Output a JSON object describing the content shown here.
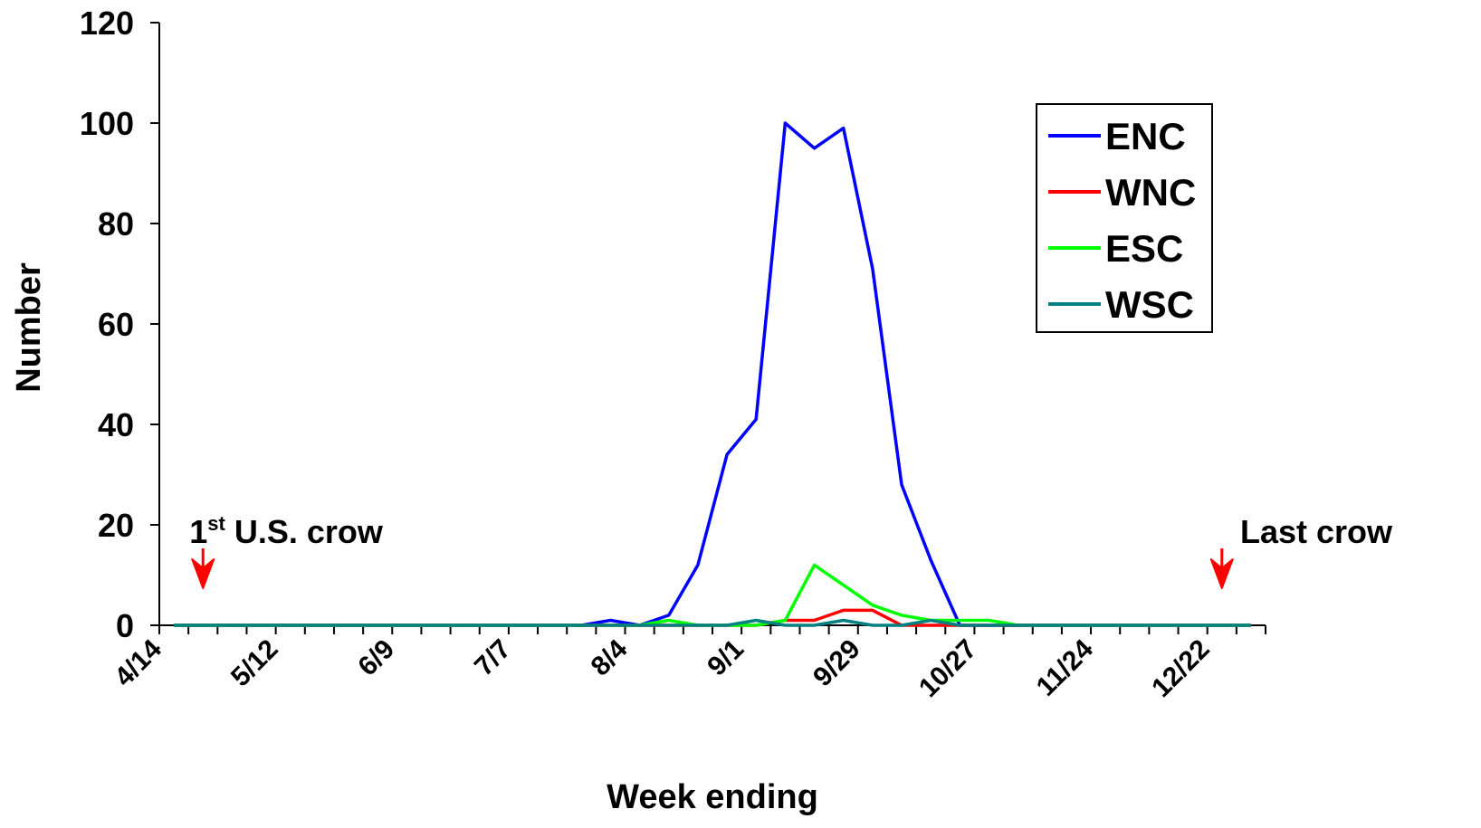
{
  "chart_data": {
    "type": "line",
    "xlabel": "Week ending",
    "ylabel": "Number",
    "ylim": [
      0,
      120
    ],
    "y_ticks": [
      0,
      20,
      40,
      60,
      80,
      100,
      120
    ],
    "x_tick_labels": [
      "4/14",
      "5/12",
      "6/9",
      "7/7",
      "8/4",
      "9/1",
      "9/29",
      "10/27",
      "11/24",
      "12/22"
    ],
    "x_label_every": 4,
    "num_weeks": 38,
    "legend_position": "top-right",
    "series": [
      {
        "name": "ENC",
        "color": "#0000ff",
        "values": [
          0,
          0,
          0,
          0,
          0,
          0,
          0,
          0,
          0,
          0,
          0,
          0,
          0,
          0,
          0,
          1,
          0,
          2,
          12,
          34,
          41,
          100,
          95,
          99,
          71,
          28,
          13,
          0,
          0,
          0,
          0,
          0,
          0,
          0,
          0,
          0,
          0,
          0
        ]
      },
      {
        "name": "WNC",
        "color": "#ff0000",
        "values": [
          0,
          0,
          0,
          0,
          0,
          0,
          0,
          0,
          0,
          0,
          0,
          0,
          0,
          0,
          0,
          0,
          0,
          0,
          0,
          0,
          0,
          1,
          1,
          3,
          3,
          0,
          0,
          0,
          0,
          0,
          0,
          0,
          0,
          0,
          0,
          0,
          0,
          0
        ]
      },
      {
        "name": "ESC",
        "color": "#00ff00",
        "values": [
          0,
          0,
          0,
          0,
          0,
          0,
          0,
          0,
          0,
          0,
          0,
          0,
          0,
          0,
          0,
          0,
          0,
          1,
          0,
          0,
          0,
          1,
          12,
          8,
          4,
          2,
          1,
          1,
          1,
          0,
          0,
          0,
          0,
          0,
          0,
          0,
          0,
          0
        ]
      },
      {
        "name": "WSC",
        "color": "#008080",
        "values": [
          0,
          0,
          0,
          0,
          0,
          0,
          0,
          0,
          0,
          0,
          0,
          0,
          0,
          0,
          0,
          0,
          0,
          0,
          0,
          0,
          1,
          0,
          0,
          1,
          0,
          0,
          1,
          0,
          0,
          0,
          0,
          0,
          0,
          0,
          0,
          0,
          0,
          0
        ]
      }
    ],
    "annotations": [
      {
        "text_main": "1",
        "text_sup": "st",
        "text_rest": " U.S. crow",
        "week_index": 1,
        "arrow_color": "#ff0000"
      },
      {
        "text_main": "Last crow",
        "text_sup": "",
        "text_rest": "",
        "week_index": 36,
        "arrow_color": "#ff0000"
      }
    ]
  }
}
